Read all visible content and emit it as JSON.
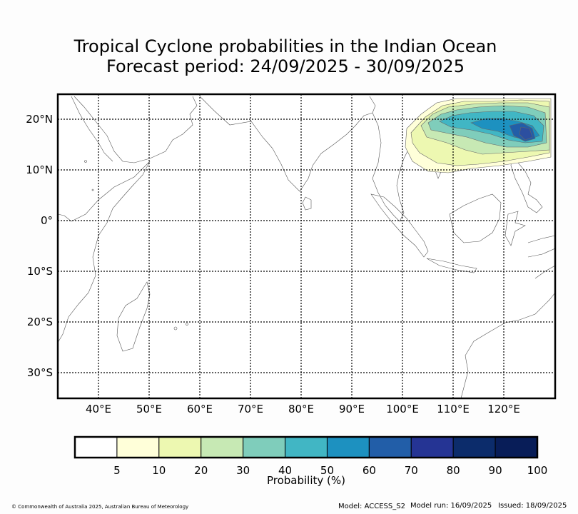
{
  "title_line1": "Tropical Cyclone probabilities in the Indian Ocean",
  "title_line2": "Forecast period: 24/09/2025 - 30/09/2025",
  "lat_labels": [
    "20°N",
    "10°N",
    "0°",
    "10°S",
    "20°S",
    "30°S"
  ],
  "lon_labels": [
    "40°E",
    "50°E",
    "60°E",
    "70°E",
    "80°E",
    "90°E",
    "100°E",
    "110°E",
    "120°E"
  ],
  "colorbar": {
    "label": "Probability (%)",
    "ticks": [
      "5",
      "10",
      "20",
      "30",
      "40",
      "50",
      "60",
      "70",
      "80",
      "90",
      "100"
    ],
    "colors": [
      "#ffffff",
      "#ffffd9",
      "#edf8b1",
      "#c7e9b4",
      "#7fcdbb",
      "#41b6c4",
      "#1d91c0",
      "#225ea8",
      "#253494",
      "#0c2c6b",
      "#081d58"
    ]
  },
  "footer": {
    "copyright": "© Commonwealth of Australia 2025, Australian Bureau of Meteorology",
    "model": "Model: ACCESS_S2",
    "model_run": "Model run: 16/09/2025",
    "issued": "Issued: 18/09/2025"
  }
}
